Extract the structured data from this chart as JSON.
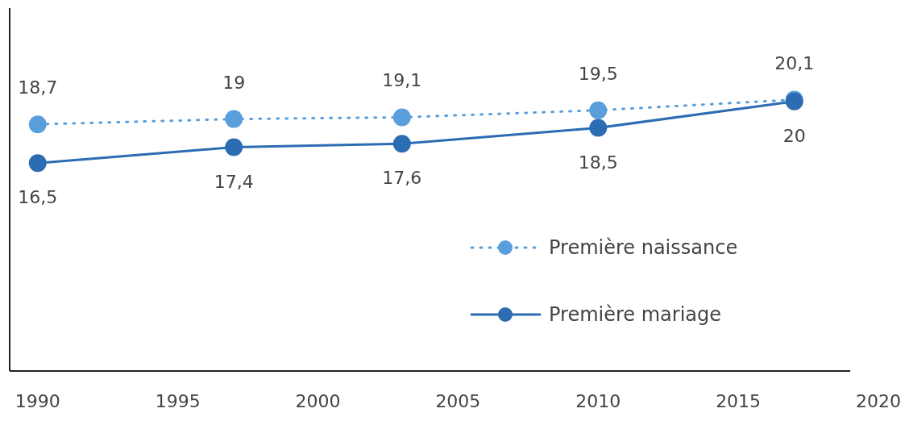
{
  "chart_data": {
    "type": "line",
    "x": [
      1990,
      1997,
      2003,
      2010,
      2017
    ],
    "series": [
      {
        "name": "Première naissance",
        "color": "#5a9fdc",
        "values": [
          18.7,
          19,
          19.1,
          19.5,
          20.1
        ],
        "value_labels": [
          "18,7",
          "19",
          "19,1",
          "19,5",
          "20,1"
        ],
        "line_style": "dotted"
      },
      {
        "name": "Première mariage",
        "color": "#2b6cb3",
        "values": [
          16.5,
          17.4,
          17.6,
          18.5,
          20
        ],
        "value_labels": [
          "16,5",
          "17,4",
          "17,6",
          "18,5",
          "20"
        ],
        "line_style": "solid"
      }
    ],
    "xlim": [
      1989,
      2020
    ],
    "xticks": [
      1990,
      1995,
      2000,
      2005,
      2010,
      2015,
      2020
    ],
    "ylim": [
      4.7,
      25.3
    ],
    "tick_labels": "x",
    "marker": "circle",
    "legend": "bottom right"
  }
}
